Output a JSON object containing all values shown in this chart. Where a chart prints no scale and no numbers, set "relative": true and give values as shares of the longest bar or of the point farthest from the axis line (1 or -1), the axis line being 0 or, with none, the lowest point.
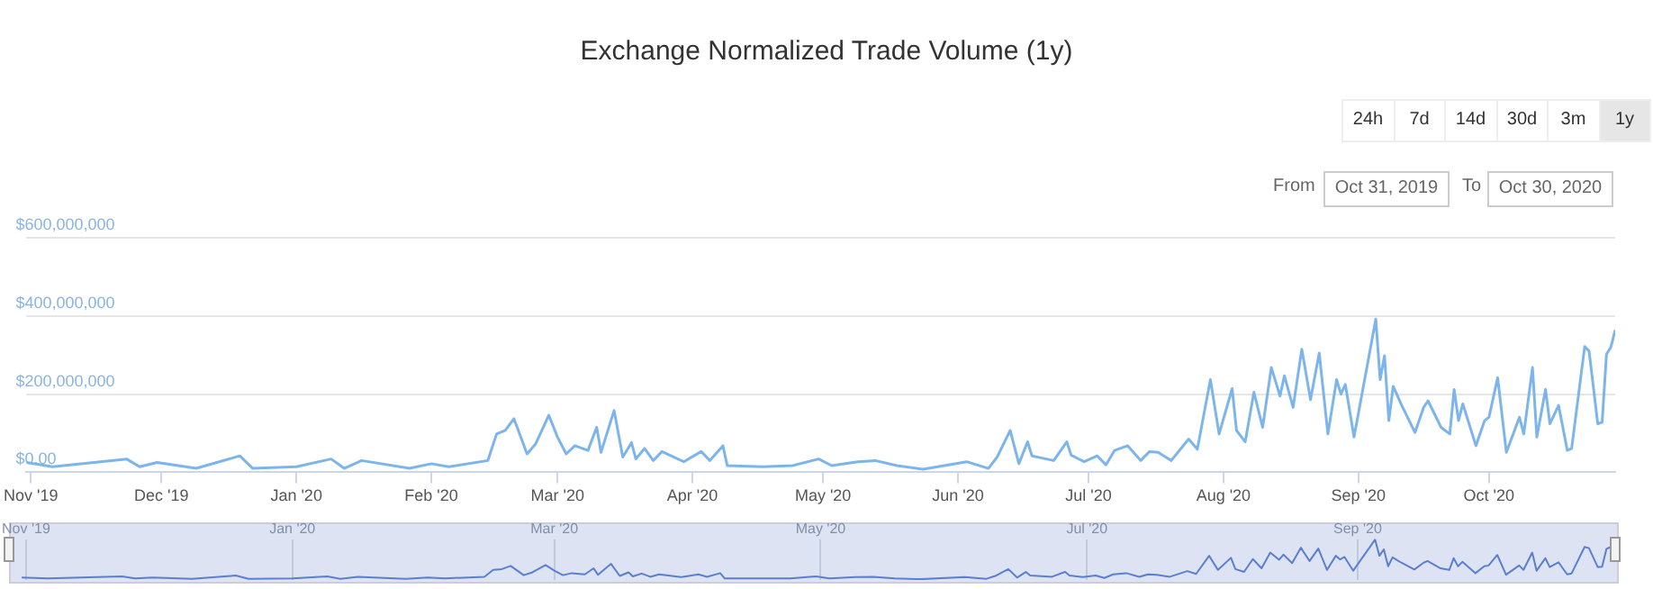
{
  "chart_data": [
    {
      "type": "line",
      "title": "Exchange Normalized Trade Volume (1y)",
      "color": "#7cb5ec",
      "marker": "none",
      "grid": "y",
      "legend": false,
      "annotations": [
        "24h",
        "7d",
        "14d",
        "30d",
        "3m",
        "1y",
        "From",
        "Oct 31, 2019",
        "To",
        "Oct 30, 2020"
      ],
      "xlim": [
        "2019-10-31",
        "2020-10-30"
      ],
      "xticks": [
        {
          "value": "2019-11-01",
          "label": "Nov '19"
        },
        {
          "value": "2019-12-01",
          "label": "Dec '19"
        },
        {
          "value": "2020-01-01",
          "label": "Jan '20"
        },
        {
          "value": "2020-02-01",
          "label": "Feb '20"
        },
        {
          "value": "2020-03-01",
          "label": "Mar '20"
        },
        {
          "value": "2020-04-01",
          "label": "Apr '20"
        },
        {
          "value": "2020-05-01",
          "label": "May '20"
        },
        {
          "value": "2020-06-01",
          "label": "Jun '20"
        },
        {
          "value": "2020-07-01",
          "label": "Jul '20"
        },
        {
          "value": "2020-08-01",
          "label": "Aug '20"
        },
        {
          "value": "2020-09-01",
          "label": "Sep '20"
        },
        {
          "value": "2020-10-01",
          "label": "Oct '20"
        }
      ],
      "ylim": [
        0,
        600000000
      ],
      "yticks": [
        {
          "value": 0,
          "label": "$0.00"
        },
        {
          "value": 200000000,
          "label": "$200,000,000"
        },
        {
          "value": 400000000,
          "label": "$400,000,000"
        },
        {
          "value": 600000000,
          "label": "$600,000,000"
        }
      ],
      "x": [
        "2019-10-31",
        "2019-11-06",
        "2019-11-23",
        "2019-11-26",
        "2019-11-30",
        "2019-12-09",
        "2019-12-19",
        "2019-12-22",
        "2020-01-01",
        "2020-01-09",
        "2020-01-12",
        "2020-01-16",
        "2020-01-27",
        "2020-02-01",
        "2020-02-05",
        "2020-02-14",
        "2020-02-16",
        "2020-02-18",
        "2020-02-20",
        "2020-02-23",
        "2020-02-25",
        "2020-02-28",
        "2020-03-01",
        "2020-03-03",
        "2020-03-05",
        "2020-03-08",
        "2020-03-10",
        "2020-03-11",
        "2020-03-14",
        "2020-03-16",
        "2020-03-18",
        "2020-03-19",
        "2020-03-21",
        "2020-03-23",
        "2020-03-25",
        "2020-03-30",
        "2020-04-03",
        "2020-04-05",
        "2020-04-08",
        "2020-04-09",
        "2020-04-17",
        "2020-04-24",
        "2020-04-30",
        "2020-05-03",
        "2020-05-09",
        "2020-05-13",
        "2020-05-18",
        "2020-05-24",
        "2020-06-03",
        "2020-06-08",
        "2020-06-10",
        "2020-06-13",
        "2020-06-15",
        "2020-06-17",
        "2020-06-18",
        "2020-06-23",
        "2020-06-26",
        "2020-06-27",
        "2020-06-30",
        "2020-07-03",
        "2020-07-05",
        "2020-07-07",
        "2020-07-10",
        "2020-07-13",
        "2020-07-15",
        "2020-07-17",
        "2020-07-20",
        "2020-07-24",
        "2020-07-26",
        "2020-07-29",
        "2020-07-31",
        "2020-08-03",
        "2020-08-04",
        "2020-08-06",
        "2020-08-08",
        "2020-08-10",
        "2020-08-12",
        "2020-08-14",
        "2020-08-15",
        "2020-08-17",
        "2020-08-19",
        "2020-08-21",
        "2020-08-23",
        "2020-08-25",
        "2020-08-27",
        "2020-08-28",
        "2020-08-29",
        "2020-08-31",
        "2020-09-05",
        "2020-09-06",
        "2020-09-07",
        "2020-09-08",
        "2020-09-09",
        "2020-09-11",
        "2020-09-14",
        "2020-09-16",
        "2020-09-17",
        "2020-09-20",
        "2020-09-22",
        "2020-09-23",
        "2020-09-24",
        "2020-09-25",
        "2020-09-28",
        "2020-09-30",
        "2020-10-01",
        "2020-10-03",
        "2020-10-05",
        "2020-10-08",
        "2020-10-09",
        "2020-10-11",
        "2020-10-12",
        "2020-10-14",
        "2020-10-15",
        "2020-10-17",
        "2020-10-19",
        "2020-10-20",
        "2020-10-23",
        "2020-10-24",
        "2020-10-26",
        "2020-10-27",
        "2020-10-28",
        "2020-10-29",
        "2020-10-30"
      ],
      "values": [
        25000000,
        14000000,
        34000000,
        14000000,
        25000000,
        10000000,
        42000000,
        10000000,
        14000000,
        34000000,
        10000000,
        30000000,
        10000000,
        22000000,
        14000000,
        30000000,
        98000000,
        107000000,
        137000000,
        47000000,
        73000000,
        146000000,
        90000000,
        47000000,
        68000000,
        56000000,
        115000000,
        51000000,
        158000000,
        39000000,
        76000000,
        34000000,
        61000000,
        30000000,
        53000000,
        27000000,
        53000000,
        30000000,
        68000000,
        17000000,
        14000000,
        17000000,
        34000000,
        17000000,
        27000000,
        30000000,
        17000000,
        8000000,
        27000000,
        10000000,
        39000000,
        107000000,
        22000000,
        78000000,
        42000000,
        30000000,
        78000000,
        44000000,
        27000000,
        42000000,
        19000000,
        56000000,
        68000000,
        30000000,
        53000000,
        51000000,
        30000000,
        85000000,
        59000000,
        237000000,
        98000000,
        214000000,
        107000000,
        78000000,
        205000000,
        115000000,
        268000000,
        195000000,
        247000000,
        166000000,
        315000000,
        186000000,
        305000000,
        98000000,
        237000000,
        200000000,
        225000000,
        90000000,
        392000000,
        237000000,
        298000000,
        132000000,
        220000000,
        170000000,
        102000000,
        166000000,
        183000000,
        115000000,
        98000000,
        212000000,
        132000000,
        175000000,
        68000000,
        132000000,
        141000000,
        242000000,
        51000000,
        141000000,
        98000000,
        268000000,
        90000000,
        212000000,
        124000000,
        171000000,
        56000000,
        61000000,
        322000000,
        310000000,
        124000000,
        128000000,
        302000000,
        320000000,
        364000000
      ]
    },
    {
      "type": "line",
      "relative": true,
      "color": "#5b7fce",
      "marker": "none",
      "grid": "x",
      "legend": false,
      "tick_labels": "x",
      "xlim": [
        "2019-10-31",
        "2020-10-30"
      ],
      "xticks": [
        {
          "value": "2019-11-01",
          "label": "Nov '19"
        },
        {
          "value": "2020-01-01",
          "label": "Jan '20"
        },
        {
          "value": "2020-03-01",
          "label": "Mar '20"
        },
        {
          "value": "2020-05-01",
          "label": "May '20"
        },
        {
          "value": "2020-07-01",
          "label": "Jul '20"
        },
        {
          "value": "2020-09-01",
          "label": "Sep '20"
        }
      ],
      "x": [
        "2019-10-31",
        "2019-11-06",
        "2019-11-23",
        "2019-11-26",
        "2019-11-30",
        "2019-12-09",
        "2019-12-19",
        "2019-12-22",
        "2020-01-01",
        "2020-01-09",
        "2020-01-12",
        "2020-01-16",
        "2020-01-27",
        "2020-02-01",
        "2020-02-05",
        "2020-02-14",
        "2020-02-16",
        "2020-02-18",
        "2020-02-20",
        "2020-02-23",
        "2020-02-25",
        "2020-02-28",
        "2020-03-01",
        "2020-03-03",
        "2020-03-05",
        "2020-03-08",
        "2020-03-10",
        "2020-03-11",
        "2020-03-14",
        "2020-03-16",
        "2020-03-18",
        "2020-03-19",
        "2020-03-21",
        "2020-03-23",
        "2020-03-25",
        "2020-03-30",
        "2020-04-03",
        "2020-04-05",
        "2020-04-08",
        "2020-04-09",
        "2020-04-17",
        "2020-04-24",
        "2020-04-30",
        "2020-05-03",
        "2020-05-09",
        "2020-05-13",
        "2020-05-18",
        "2020-05-24",
        "2020-06-03",
        "2020-06-08",
        "2020-06-10",
        "2020-06-13",
        "2020-06-15",
        "2020-06-17",
        "2020-06-18",
        "2020-06-23",
        "2020-06-26",
        "2020-06-27",
        "2020-06-30",
        "2020-07-03",
        "2020-07-05",
        "2020-07-07",
        "2020-07-10",
        "2020-07-13",
        "2020-07-15",
        "2020-07-17",
        "2020-07-20",
        "2020-07-24",
        "2020-07-26",
        "2020-07-29",
        "2020-07-31",
        "2020-08-03",
        "2020-08-04",
        "2020-08-06",
        "2020-08-08",
        "2020-08-10",
        "2020-08-12",
        "2020-08-14",
        "2020-08-15",
        "2020-08-17",
        "2020-08-19",
        "2020-08-21",
        "2020-08-23",
        "2020-08-25",
        "2020-08-27",
        "2020-08-28",
        "2020-08-29",
        "2020-08-31",
        "2020-09-05",
        "2020-09-06",
        "2020-09-07",
        "2020-09-08",
        "2020-09-09",
        "2020-09-11",
        "2020-09-14",
        "2020-09-16",
        "2020-09-17",
        "2020-09-20",
        "2020-09-22",
        "2020-09-23",
        "2020-09-24",
        "2020-09-25",
        "2020-09-28",
        "2020-09-30",
        "2020-10-01",
        "2020-10-03",
        "2020-10-05",
        "2020-10-08",
        "2020-10-09",
        "2020-10-11",
        "2020-10-12",
        "2020-10-14",
        "2020-10-15",
        "2020-10-17",
        "2020-10-19",
        "2020-10-20",
        "2020-10-23",
        "2020-10-24",
        "2020-10-26",
        "2020-10-27",
        "2020-10-28",
        "2020-10-29",
        "2020-10-30"
      ],
      "values": [
        0.06,
        0.04,
        0.09,
        0.04,
        0.06,
        0.03,
        0.11,
        0.03,
        0.04,
        0.09,
        0.03,
        0.08,
        0.03,
        0.06,
        0.04,
        0.08,
        0.25,
        0.27,
        0.35,
        0.12,
        0.19,
        0.37,
        0.23,
        0.12,
        0.17,
        0.14,
        0.29,
        0.13,
        0.4,
        0.1,
        0.19,
        0.09,
        0.16,
        0.08,
        0.14,
        0.07,
        0.14,
        0.08,
        0.17,
        0.04,
        0.04,
        0.04,
        0.09,
        0.04,
        0.07,
        0.08,
        0.04,
        0.02,
        0.07,
        0.03,
        0.1,
        0.27,
        0.06,
        0.2,
        0.11,
        0.08,
        0.2,
        0.11,
        0.07,
        0.11,
        0.05,
        0.14,
        0.17,
        0.08,
        0.14,
        0.13,
        0.08,
        0.22,
        0.15,
        0.6,
        0.25,
        0.55,
        0.27,
        0.2,
        0.52,
        0.29,
        0.68,
        0.5,
        0.63,
        0.42,
        0.8,
        0.47,
        0.78,
        0.25,
        0.6,
        0.51,
        0.57,
        0.23,
        1,
        0.6,
        0.76,
        0.34,
        0.56,
        0.43,
        0.26,
        0.42,
        0.47,
        0.29,
        0.25,
        0.54,
        0.34,
        0.45,
        0.17,
        0.34,
        0.36,
        0.62,
        0.13,
        0.36,
        0.25,
        0.68,
        0.23,
        0.54,
        0.32,
        0.44,
        0.14,
        0.16,
        0.82,
        0.79,
        0.32,
        0.33,
        0.77,
        0.82,
        0.93
      ]
    }
  ]
}
